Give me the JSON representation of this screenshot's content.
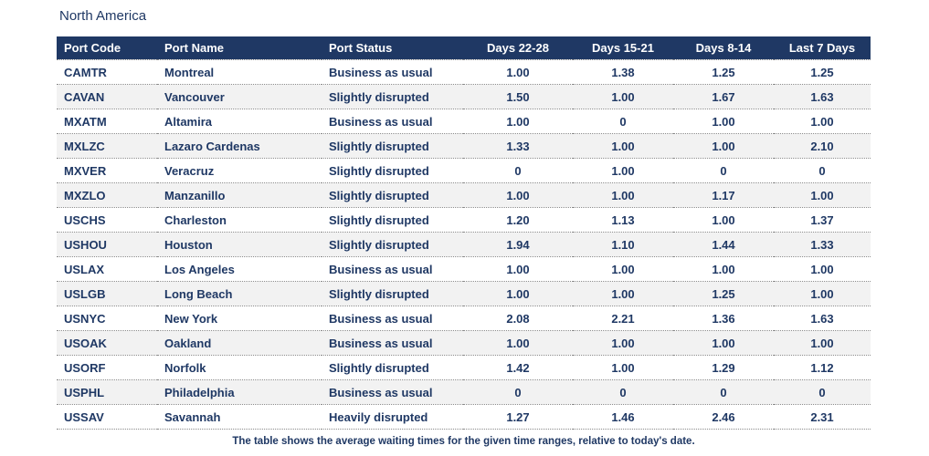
{
  "title": "North America",
  "caption": "The table shows the average waiting times for the given time ranges, relative to today's date.",
  "colors": {
    "header_bg": "#1F3864",
    "header_text": "#FFFFFF",
    "body_text": "#1F3864",
    "stripe_bg": "#F2F2F2",
    "row_bg": "#FFFFFF",
    "dotted_border": "#8A8A8A"
  },
  "chart_data": {
    "type": "table",
    "title": "North America",
    "columns": [
      {
        "label": "Port Code",
        "align": "left"
      },
      {
        "label": "Port Name",
        "align": "left"
      },
      {
        "label": "Port Status",
        "align": "left"
      },
      {
        "label": "Days 22-28",
        "align": "center"
      },
      {
        "label": "Days 15-21",
        "align": "center"
      },
      {
        "label": "Days 8-14",
        "align": "center"
      },
      {
        "label": "Last 7 Days",
        "align": "center"
      }
    ],
    "rows": [
      [
        "CAMTR",
        "Montreal",
        "Business as usual",
        "1.00",
        "1.38",
        "1.25",
        "1.25"
      ],
      [
        "CAVAN",
        "Vancouver",
        "Slightly disrupted",
        "1.50",
        "1.00",
        "1.67",
        "1.63"
      ],
      [
        "MXATM",
        "Altamira",
        "Business as usual",
        "1.00",
        "0",
        "1.00",
        "1.00"
      ],
      [
        "MXLZC",
        "Lazaro Cardenas",
        "Slightly disrupted",
        "1.33",
        "1.00",
        "1.00",
        "2.10"
      ],
      [
        "MXVER",
        "Veracruz",
        "Slightly disrupted",
        "0",
        "1.00",
        "0",
        "0"
      ],
      [
        "MXZLO",
        "Manzanillo",
        "Slightly disrupted",
        "1.00",
        "1.00",
        "1.17",
        "1.00"
      ],
      [
        "USCHS",
        "Charleston",
        "Slightly disrupted",
        "1.20",
        "1.13",
        "1.00",
        "1.37"
      ],
      [
        "USHOU",
        "Houston",
        "Slightly disrupted",
        "1.94",
        "1.10",
        "1.44",
        "1.33"
      ],
      [
        "USLAX",
        "Los Angeles",
        "Business as usual",
        "1.00",
        "1.00",
        "1.00",
        "1.00"
      ],
      [
        "USLGB",
        "Long Beach",
        "Slightly disrupted",
        "1.00",
        "1.00",
        "1.25",
        "1.00"
      ],
      [
        "USNYC",
        "New York",
        "Business as usual",
        "2.08",
        "2.21",
        "1.36",
        "1.63"
      ],
      [
        "USOAK",
        "Oakland",
        "Business as usual",
        "1.00",
        "1.00",
        "1.00",
        "1.00"
      ],
      [
        "USORF",
        "Norfolk",
        "Slightly disrupted",
        "1.42",
        "1.00",
        "1.29",
        "1.12"
      ],
      [
        "USPHL",
        "Philadelphia",
        "Business as usual",
        "0",
        "0",
        "0",
        "0"
      ],
      [
        "USSAV",
        "Savannah",
        "Heavily disrupted",
        "1.27",
        "1.46",
        "2.46",
        "2.31"
      ]
    ]
  }
}
